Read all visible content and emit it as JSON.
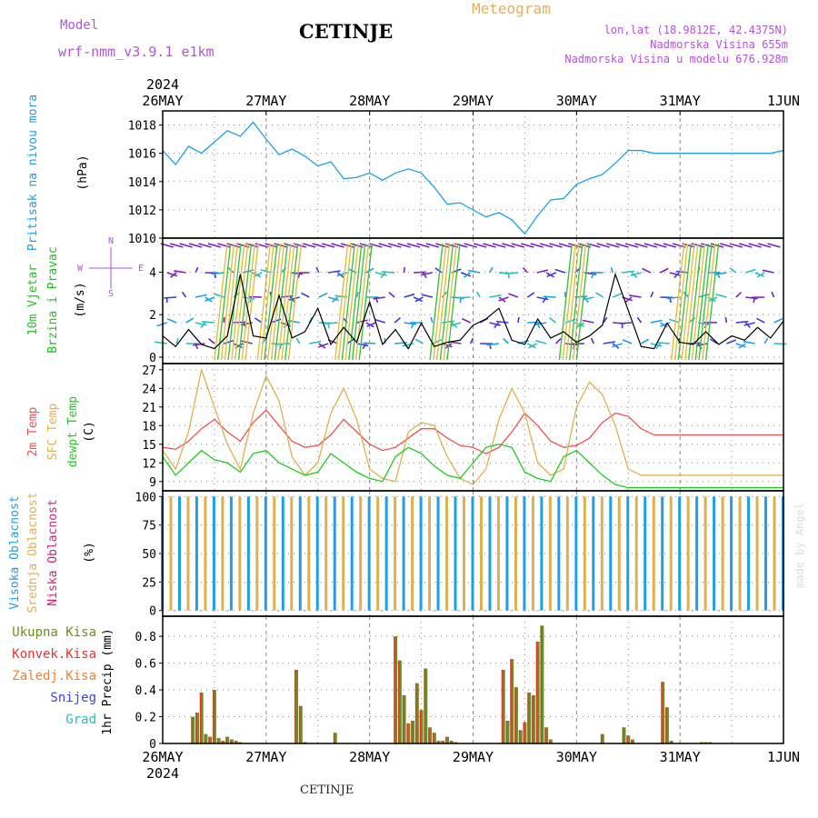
{
  "header": {
    "model_label": "Model",
    "model_name": "wrf-nmm_v3.9.1 e1km",
    "title": "CETINJE",
    "meteogram_label": "Meteogram",
    "lonlat": "lon,lat (18.9812E, 42.4375N)",
    "elevation": "Nadmorska Visina 655m",
    "model_elevation": "Nadmorska Visina u modelu 676.928m",
    "year": "2024",
    "footer_title": "CETINJE",
    "credit": "made by Angel"
  },
  "colors": {
    "pressure": "#1ea0e6",
    "wind_title": "#22c022",
    "wind_speed": "#000000",
    "temp2m": "#f05050",
    "sfc_temp": "#e0b050",
    "dewpt": "#22c822",
    "high_cloud": "#1ea0e6",
    "mid_cloud": "#e0b050",
    "low_cloud": "#d0207a",
    "total_precip": "#6b8e23",
    "convective": "#f03030",
    "frozen": "#f08030",
    "snow": "#4040f0",
    "hail": "#20c0c0",
    "compass": "#b453d9"
  },
  "chart_data": [
    {
      "type": "line",
      "panel": "pressure",
      "ylabel": [
        "Pritisak na nivou mora",
        "(hPa)"
      ],
      "x_ticks": [
        "26MAY",
        "27MAY",
        "28MAY",
        "29MAY",
        "30MAY",
        "31MAY",
        "1JUN"
      ],
      "yticks": [
        "1010",
        "1012",
        "1014",
        "1016",
        "1018"
      ],
      "ylim": [
        1010,
        1019
      ],
      "xlim": [
        0,
        144
      ],
      "grid": true,
      "x": [
        0,
        3,
        6,
        9,
        12,
        15,
        18,
        21,
        24,
        27,
        30,
        33,
        36,
        39,
        42,
        45,
        48,
        51,
        54,
        57,
        60,
        63,
        66,
        69,
        72,
        75,
        78,
        81,
        84,
        87,
        90,
        93,
        96,
        99,
        102,
        105,
        108,
        111,
        114,
        117,
        120,
        123,
        126,
        129,
        132,
        135,
        138,
        141,
        144
      ],
      "values": [
        1016.2,
        1015.2,
        1016.5,
        1016.0,
        1016.8,
        1017.6,
        1017.2,
        1018.2,
        1017.0,
        1015.9,
        1016.3,
        1015.8,
        1015.1,
        1015.4,
        1014.2,
        1014.3,
        1014.6,
        1014.1,
        1014.6,
        1014.9,
        1014.6,
        1013.6,
        1012.4,
        1012.5,
        1012.0,
        1011.5,
        1011.8,
        1011.3,
        1010.3,
        1011.6,
        1012.7,
        1012.8,
        1013.8,
        1014.2,
        1014.5,
        1015.3,
        1016.2,
        1016.2,
        1016.0,
        1016.0,
        1016.0,
        1016.0,
        1016.0,
        1016.0,
        1016.0,
        1016.0,
        1016.0,
        1016.0,
        1016.2
      ]
    },
    {
      "type": "line",
      "panel": "wind",
      "ylabel": [
        "10m Vjetar",
        "Brzina i Pravac",
        "(m/s)"
      ],
      "compass": [
        "N",
        "W",
        "E",
        "S"
      ],
      "yticks": [
        "0",
        "2",
        "4"
      ],
      "ylim": [
        -0.3,
        5.6
      ],
      "grid": true,
      "x": [
        0,
        3,
        6,
        9,
        12,
        15,
        18,
        21,
        24,
        27,
        30,
        33,
        36,
        39,
        42,
        45,
        48,
        51,
        54,
        57,
        60,
        63,
        66,
        69,
        72,
        75,
        78,
        81,
        84,
        87,
        90,
        93,
        96,
        99,
        102,
        105,
        108,
        111,
        114,
        117,
        120,
        123,
        126,
        129,
        132,
        135,
        138,
        141,
        144
      ],
      "values": [
        1.0,
        0.5,
        1.3,
        0.6,
        0.4,
        1.0,
        3.9,
        1.0,
        0.9,
        2.9,
        0.9,
        1.2,
        2.3,
        0.6,
        1.4,
        0.7,
        2.6,
        0.6,
        1.3,
        0.4,
        1.6,
        0.5,
        0.7,
        0.8,
        1.5,
        1.8,
        2.3,
        0.8,
        0.6,
        1.8,
        0.9,
        1.2,
        0.7,
        1.0,
        1.5,
        3.9,
        2.2,
        0.5,
        0.4,
        1.6,
        0.7,
        0.6,
        1.2,
        0.6,
        1.0,
        0.8,
        1.4,
        0.9,
        1.7
      ]
    },
    {
      "type": "line",
      "panel": "temperature",
      "ylabel": [
        "2m Temp",
        "SFC Temp",
        "dewpt Temp",
        "(C)"
      ],
      "yticks": [
        "9",
        "12",
        "15",
        "18",
        "21",
        "24",
        "27"
      ],
      "ylim": [
        7.5,
        28
      ],
      "grid": true,
      "x": [
        0,
        3,
        6,
        9,
        12,
        15,
        18,
        21,
        24,
        27,
        30,
        33,
        36,
        39,
        42,
        45,
        48,
        51,
        54,
        57,
        60,
        63,
        66,
        69,
        72,
        75,
        78,
        81,
        84,
        87,
        90,
        93,
        96,
        99,
        102,
        105,
        108,
        111,
        114,
        117,
        120,
        123,
        126,
        129,
        132,
        135,
        138,
        141,
        144
      ],
      "series": [
        {
          "name": "2m Temp",
          "values": [
            14.5,
            14.2,
            15.5,
            17.5,
            19.0,
            17.0,
            15.5,
            18.5,
            20.5,
            18.0,
            15.5,
            14.5,
            14.8,
            16.5,
            19.0,
            17.0,
            15.0,
            14.0,
            14.5,
            16.0,
            17.5,
            17.5,
            16.0,
            14.8,
            14.5,
            13.5,
            14.5,
            17.0,
            20.0,
            18.0,
            15.5,
            14.5,
            14.8,
            16.0,
            18.5,
            20.0,
            19.5,
            17.5,
            16.5,
            16.5,
            16.5,
            16.5,
            16.5,
            16.5,
            16.5,
            16.5,
            16.5,
            16.5,
            16.5
          ]
        },
        {
          "name": "SFC Temp",
          "values": [
            14.0,
            11.0,
            17.0,
            27.0,
            21.0,
            15.0,
            11.0,
            20.0,
            26.0,
            22.0,
            13.0,
            10.0,
            12.0,
            20.0,
            24.0,
            19.0,
            11.0,
            9.5,
            9.0,
            17.0,
            18.5,
            18.0,
            13.0,
            9.5,
            8.5,
            11.0,
            19.0,
            24.0,
            20.0,
            12.0,
            10.0,
            11.0,
            21.0,
            25.0,
            23.0,
            18.0,
            11.0,
            10.0,
            10.0,
            10.0,
            10.0,
            10.0,
            10.0,
            10.0,
            10.0,
            10.0,
            10.0,
            10.0,
            10.0
          ]
        },
        {
          "name": "dewpt Temp",
          "values": [
            13.0,
            10.0,
            12.0,
            14.0,
            12.5,
            12.0,
            10.5,
            13.5,
            14.0,
            12.0,
            11.0,
            10.0,
            10.5,
            13.5,
            12.0,
            10.5,
            9.5,
            9.0,
            13.0,
            14.5,
            13.5,
            11.5,
            10.0,
            9.5,
            12.0,
            14.5,
            15.0,
            14.5,
            10.5,
            9.5,
            9.0,
            13.0,
            14.0,
            12.0,
            10.0,
            8.5,
            8.0,
            8.0,
            8.0,
            8.0,
            8.0,
            8.0,
            8.0,
            8.0,
            8.0,
            8.0,
            8.0,
            8.0,
            8.0
          ]
        }
      ]
    },
    {
      "type": "bar",
      "panel": "cloud",
      "ylabel": [
        "Visoka Oblacnost",
        "Srednja Oblacnost",
        "Niska Oblacnost",
        "(%)"
      ],
      "yticks": [
        "0",
        "25",
        "50",
        "75",
        "100"
      ],
      "ylim": [
        -5,
        105
      ],
      "grid": true,
      "series": [
        {
          "name": "Visoka Oblacnost",
          "x": [
            0,
            4,
            8,
            12,
            16,
            20,
            24,
            28,
            32,
            36,
            40,
            44,
            48,
            52,
            56,
            60,
            64,
            68,
            72,
            76,
            80,
            84,
            88,
            92,
            96,
            100,
            104,
            108,
            112,
            116,
            120,
            124,
            128,
            132,
            136,
            140,
            144
          ],
          "values": [
            100,
            100,
            100,
            100,
            100,
            100,
            100,
            100,
            100,
            100,
            100,
            100,
            100,
            100,
            100,
            100,
            100,
            100,
            100,
            100,
            100,
            100,
            100,
            100,
            100,
            100,
            100,
            100,
            100,
            100,
            100,
            100,
            100,
            100,
            100,
            100,
            100
          ]
        },
        {
          "name": "Srednja Oblacnost",
          "x": [
            2,
            6,
            10,
            14,
            18,
            22,
            26,
            30,
            34,
            38,
            42,
            46,
            50,
            54,
            58,
            62,
            66,
            70,
            74,
            78,
            82,
            86,
            90,
            94,
            98,
            102,
            106,
            110,
            114,
            118,
            122,
            126,
            130,
            134,
            138,
            142
          ],
          "values": [
            100,
            100,
            100,
            100,
            100,
            100,
            100,
            100,
            100,
            100,
            100,
            100,
            100,
            100,
            100,
            100,
            100,
            100,
            100,
            100,
            100,
            100,
            100,
            100,
            100,
            100,
            100,
            100,
            100,
            100,
            100,
            100,
            100,
            100,
            100,
            100
          ]
        },
        {
          "name": "Niska Oblacnost",
          "x": [
            3,
            9,
            15,
            21,
            27,
            33,
            39,
            45,
            51,
            57,
            63,
            69,
            75,
            81,
            87,
            93,
            99,
            105,
            111,
            117,
            123,
            129,
            135,
            141
          ],
          "values": [
            0,
            0,
            0,
            0,
            0,
            0,
            0,
            0,
            0,
            0,
            0,
            0,
            0,
            0,
            0,
            0,
            0,
            0,
            0,
            0,
            0,
            0,
            0,
            0
          ]
        }
      ]
    },
    {
      "type": "bar",
      "panel": "precip",
      "ylabel": [
        "1hr Precip (mm)"
      ],
      "yticks": [
        "0",
        "0.2",
        "0.4",
        "0.6",
        "0.8"
      ],
      "ylim": [
        0,
        0.95
      ],
      "grid": true,
      "legend": [
        "Ukupna Kisa",
        "Konvek.Kisa",
        "Zaledj.Kisa",
        "Snijeg",
        "Grad"
      ],
      "x": [
        7,
        8,
        9,
        10,
        11,
        12,
        13,
        14,
        15,
        16,
        17,
        18,
        31,
        32,
        33,
        40,
        54,
        55,
        56,
        57,
        58,
        59,
        60,
        61,
        62,
        63,
        64,
        65,
        66,
        67,
        68,
        79,
        80,
        81,
        82,
        83,
        84,
        85,
        86,
        87,
        88,
        89,
        90,
        102,
        107,
        108,
        109,
        116,
        117,
        118,
        125,
        126,
        127
      ],
      "values": [
        0.2,
        0.23,
        0.38,
        0.07,
        0.05,
        0.4,
        0.04,
        0.02,
        0.05,
        0.03,
        0.02,
        0.01,
        0.55,
        0.28,
        0.01,
        0.08,
        0.8,
        0.62,
        0.36,
        0.15,
        0.17,
        0.45,
        0.25,
        0.56,
        0.12,
        0.08,
        0.02,
        0.02,
        0.05,
        0.02,
        0.01,
        0.55,
        0.17,
        0.63,
        0.42,
        0.1,
        0.16,
        0.38,
        0.36,
        0.76,
        0.88,
        0.12,
        0.03,
        0.07,
        0.12,
        0.06,
        0.03,
        0.46,
        0.27,
        0.02,
        0.01,
        0.01,
        0.01
      ]
    }
  ]
}
